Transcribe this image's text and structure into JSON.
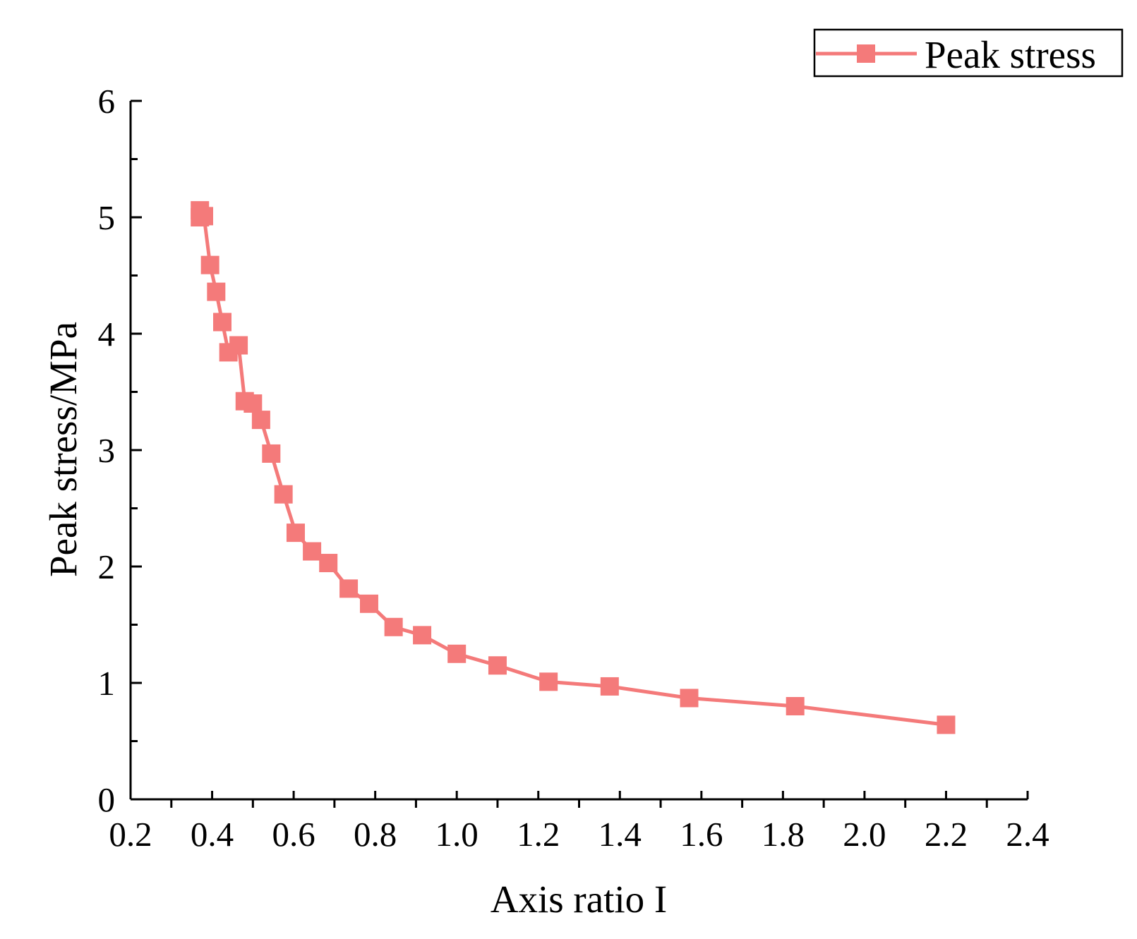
{
  "chart_data": {
    "type": "line",
    "title": "",
    "xlabel": "Axis ratio I",
    "ylabel": "Peak stress/MPa",
    "xlim": [
      0.2,
      2.4
    ],
    "ylim": [
      0,
      6
    ],
    "xticks": [
      "0.2",
      "0.4",
      "0.6",
      "0.8",
      "1.0",
      "1.2",
      "1.4",
      "1.6",
      "1.8",
      "2.0",
      "2.2",
      "2.4"
    ],
    "yticks": [
      "0",
      "1",
      "2",
      "3",
      "4",
      "5",
      "6"
    ],
    "grid": false,
    "legend_position": "top-right",
    "color": "#f47a7a",
    "series": [
      {
        "name": "Peak stress",
        "x": [
          0.37,
          0.37,
          0.38,
          0.395,
          0.41,
          0.425,
          0.44,
          0.465,
          0.48,
          0.5,
          0.52,
          0.545,
          0.575,
          0.605,
          0.645,
          0.685,
          0.735,
          0.785,
          0.845,
          0.915,
          1.0,
          1.1,
          1.225,
          1.375,
          1.57,
          1.83,
          2.2
        ],
        "y": [
          5.06,
          5.0,
          5.01,
          4.59,
          4.36,
          4.1,
          3.84,
          3.9,
          3.42,
          3.4,
          3.26,
          2.97,
          2.62,
          2.29,
          2.13,
          2.03,
          1.81,
          1.68,
          1.48,
          1.41,
          1.25,
          1.15,
          1.01,
          0.97,
          0.87,
          0.8,
          0.64
        ]
      }
    ]
  }
}
